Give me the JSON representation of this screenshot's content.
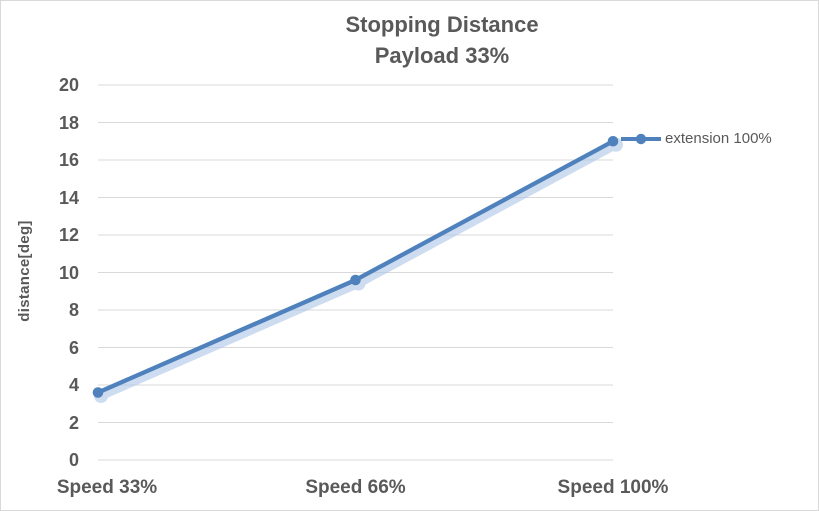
{
  "chart_data": {
    "type": "line",
    "title": "Stopping Distance",
    "subtitle": "Payload 33%",
    "categories": [
      "Speed 33%",
      "Speed 66%",
      "Speed 100%"
    ],
    "series": [
      {
        "name": "extension 100%",
        "values": [
          3.6,
          9.6,
          17.0
        ]
      }
    ],
    "xlabel": "",
    "ylabel": "distance[deg]",
    "ylim": [
      0,
      20
    ],
    "yticks": [
      0,
      2,
      4,
      6,
      8,
      10,
      12,
      14,
      16,
      18,
      20
    ],
    "grid": "horizontal",
    "legend_position": "right",
    "marker": "circle",
    "colors": {
      "series": "#4F81BD",
      "series_halo": "#AFC7E6",
      "grid": "#D9D9D9",
      "text": "#595959",
      "border": "#D9D9D9",
      "background": "#FFFFFF"
    }
  }
}
